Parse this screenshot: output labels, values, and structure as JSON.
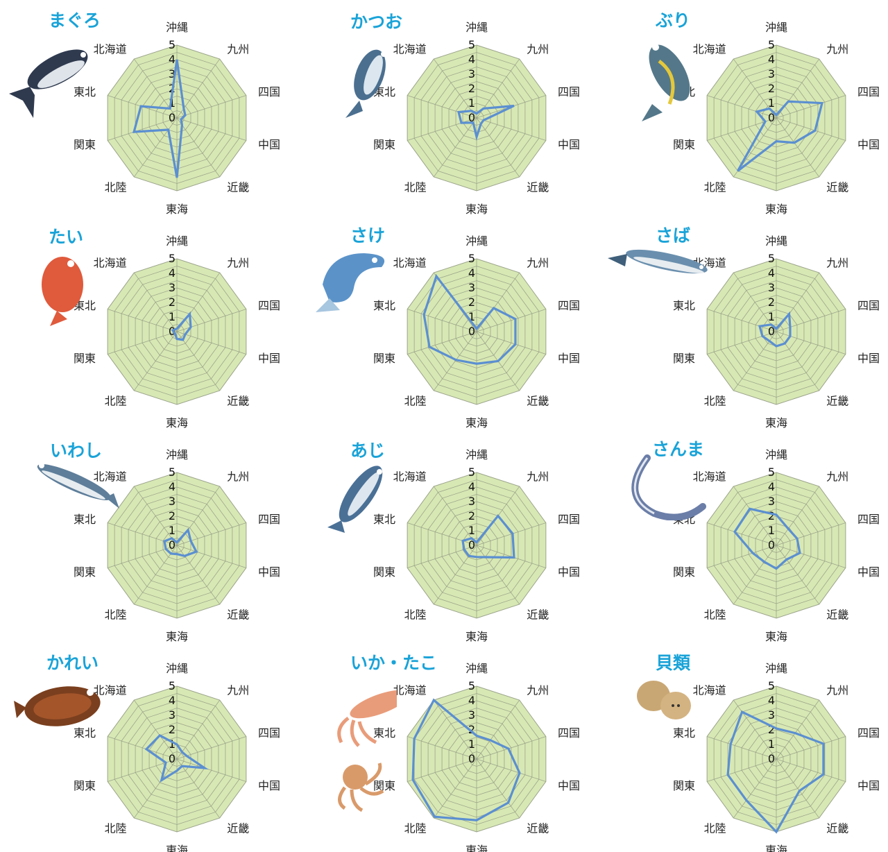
{
  "axes": [
    "沖縄",
    "九州",
    "四国",
    "中国",
    "近畿",
    "東海",
    "北陸",
    "関東",
    "東北",
    "北海道"
  ],
  "ticks": [
    "0",
    "1",
    "2",
    "3",
    "4",
    "5"
  ],
  "colors": {
    "fill": "#d8e8b4",
    "grid": "#9aa48a",
    "line": "#5b8fd1",
    "title": "#19a3d8"
  },
  "chart_data": [
    {
      "type": "radar",
      "title": "まぐろ",
      "icon": "tuna-icon",
      "series": [
        {
          "values": [
            4.0,
            0.8,
            0.6,
            0.3,
            0.6,
            4.1,
            1.0,
            3.1,
            2.6,
            0.8
          ]
        }
      ],
      "ylim": [
        0,
        5
      ]
    },
    {
      "type": "radar",
      "title": "かつお",
      "icon": "bonito-icon",
      "series": [
        {
          "values": [
            0.3,
            0.8,
            2.7,
            0.5,
            0.5,
            1.3,
            0.4,
            1.1,
            1.3,
            0.6
          ]
        }
      ],
      "ylim": [
        0,
        5
      ]
    },
    {
      "type": "radar",
      "title": "ぶり",
      "icon": "yellowtail-icon",
      "series": [
        {
          "values": [
            0.2,
            1.4,
            3.3,
            2.8,
            2.1,
            1.6,
            4.5,
            0.8,
            1.4,
            0.8
          ]
        }
      ],
      "ylim": [
        0,
        5
      ]
    },
    {
      "type": "radar",
      "title": "たい",
      "icon": "sea-bream-icon",
      "series": [
        {
          "values": [
            0.2,
            1.5,
            1.0,
            0.6,
            0.7,
            0.5,
            0.2,
            0.2,
            0.3,
            0.2
          ]
        }
      ],
      "ylim": [
        0,
        5
      ]
    },
    {
      "type": "radar",
      "title": "さけ",
      "icon": "salmon-icon",
      "series": [
        {
          "values": [
            0.2,
            2.0,
            2.8,
            2.8,
            2.5,
            2.2,
            2.4,
            3.4,
            3.8,
            4.7
          ]
        }
      ],
      "ylim": [
        0,
        5
      ]
    },
    {
      "type": "radar",
      "title": "さば",
      "icon": "mackerel-icon",
      "series": [
        {
          "values": [
            0.2,
            1.5,
            1.0,
            1.0,
            1.0,
            1.0,
            0.8,
            1.0,
            1.2,
            0.6
          ]
        }
      ],
      "ylim": [
        0,
        5
      ]
    },
    {
      "type": "radar",
      "title": "いわし",
      "icon": "sardine-icon",
      "series": [
        {
          "values": [
            0.2,
            1.3,
            1.0,
            1.4,
            0.9,
            0.6,
            0.7,
            0.8,
            0.9,
            0.6
          ]
        }
      ],
      "ylim": [
        0,
        5
      ]
    },
    {
      "type": "radar",
      "title": "あじ",
      "icon": "horse-mackerel-icon",
      "series": [
        {
          "values": [
            0.2,
            2.5,
            2.6,
            2.7,
            1.0,
            0.8,
            0.9,
            0.9,
            1.0,
            0.6
          ]
        }
      ],
      "ylim": [
        0,
        5
      ]
    },
    {
      "type": "radar",
      "title": "さんま",
      "icon": "saury-icon",
      "series": [
        {
          "values": [
            2.1,
            1.4,
            1.5,
            1.7,
            1.2,
            1.6,
            1.4,
            1.7,
            3.0,
            3.1
          ]
        }
      ],
      "ylim": [
        0,
        5
      ]
    },
    {
      "type": "radar",
      "title": "かれい",
      "icon": "flounder-icon",
      "series": [
        {
          "values": [
            1.0,
            0.6,
            0.7,
            2.0,
            0.6,
            0.8,
            1.8,
            0.8,
            2.2,
            2.0
          ]
        }
      ],
      "ylim": [
        0,
        5
      ]
    },
    {
      "type": "radar",
      "title": "いか・たこ",
      "icon": "squid-octopus-icon",
      "series": [
        {
          "values": [
            1.6,
            1.6,
            2.3,
            3.1,
            3.7,
            4.2,
            4.9,
            4.6,
            4.5,
            5.0
          ]
        }
      ],
      "ylim": [
        0,
        5
      ]
    },
    {
      "type": "radar",
      "title": "貝類",
      "icon": "shellfish-icon",
      "series": [
        {
          "values": [
            2.1,
            2.2,
            3.4,
            3.4,
            2.7,
            5.0,
            3.5,
            3.5,
            3.3,
            4.0
          ]
        }
      ],
      "ylim": [
        0,
        5
      ]
    }
  ]
}
